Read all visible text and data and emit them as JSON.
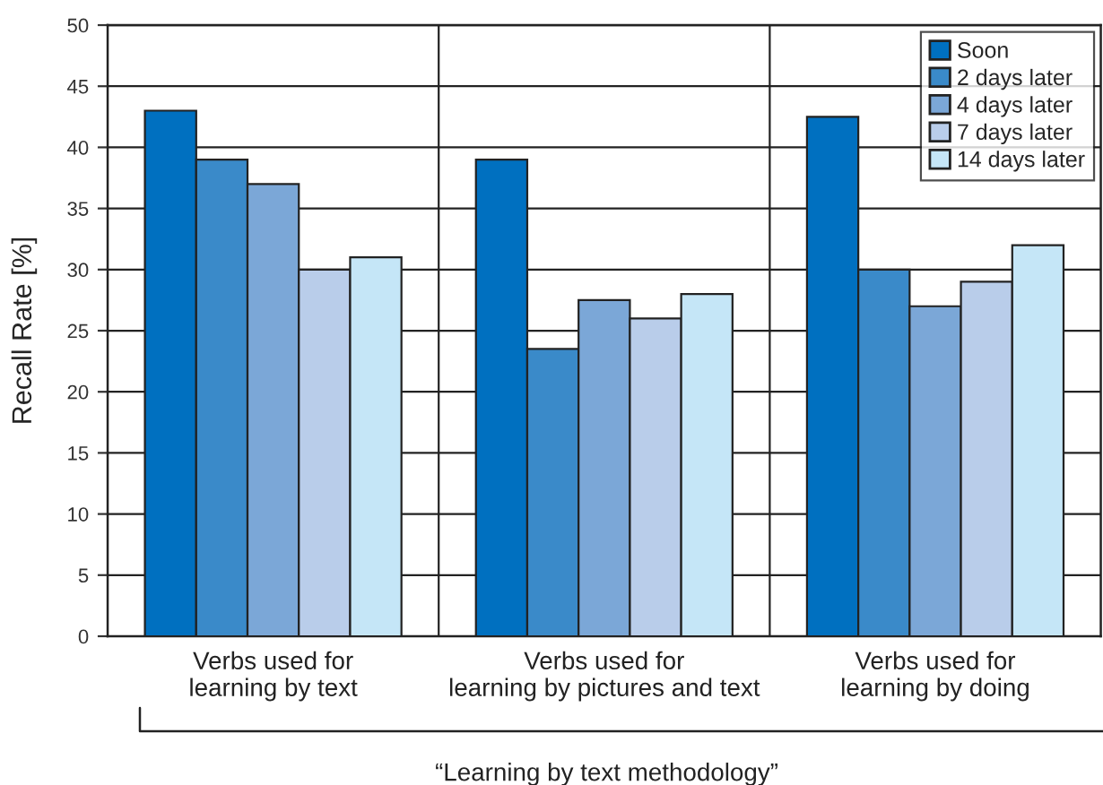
{
  "chart_data": {
    "type": "bar",
    "xlabel": "“Learning by text methodology”",
    "ylabel": "Recall Rate [%]",
    "categories": [
      "Verbs used for\nlearning by text",
      "Verbs used for\nlearning by pictures and text",
      "Verbs used for\nlearning by doing"
    ],
    "series": [
      {
        "name": "Soon",
        "color": "#0070c0",
        "values": [
          43,
          39,
          42.5
        ]
      },
      {
        "name": "2 days later",
        "color": "#3a8ac9",
        "values": [
          39,
          23.5,
          30
        ]
      },
      {
        "name": "4 days later",
        "color": "#7ba7d7",
        "values": [
          37,
          27.5,
          27
        ]
      },
      {
        "name": "7 days later",
        "color": "#b9cdea",
        "values": [
          30,
          26,
          29
        ]
      },
      {
        "name": "14 days later",
        "color": "#c5e6f7",
        "values": [
          31,
          28,
          32
        ]
      }
    ],
    "ylim": [
      0,
      50
    ],
    "yticks": [
      0,
      5,
      10,
      15,
      20,
      25,
      30,
      35,
      40,
      45,
      50
    ],
    "grid": true,
    "legend": "top right"
  }
}
